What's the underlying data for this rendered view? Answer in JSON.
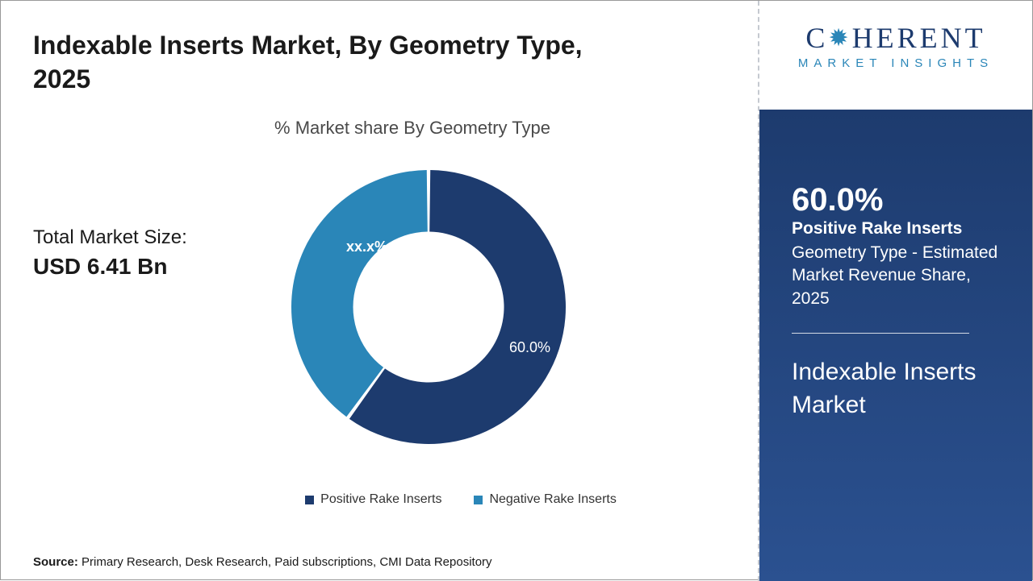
{
  "title": "Indexable Inserts Market, By Geometry Type, 2025",
  "chart": {
    "type": "donut",
    "title": "% Market share By Geometry Type",
    "series": [
      {
        "name": "Positive Rake Inserts",
        "value": 60.0,
        "display_label": "60.0%",
        "color": "#1d3b6e"
      },
      {
        "name": "Negative Rake Inserts",
        "value": 40.0,
        "display_label": "xx.x%",
        "color": "#2a86b8"
      }
    ],
    "inner_radius_ratio": 0.55,
    "outer_radius": 170,
    "gap_deg": 1.5,
    "background_color": "#ffffff",
    "label_fontsize": 18,
    "label_color": "#ffffff"
  },
  "market_size": {
    "label": "Total Market Size:",
    "value": "USD 6.41 Bn"
  },
  "legend": {
    "items": [
      {
        "label": "Positive Rake Inserts",
        "color": "#1d3b6e"
      },
      {
        "label": "Negative Rake Inserts",
        "color": "#2a86b8"
      }
    ],
    "fontsize": 16
  },
  "source": {
    "prefix": "Source:",
    "text": "Primary Research, Desk Research, Paid subscriptions, CMI Data Repository"
  },
  "logo": {
    "brand_pre": "C",
    "brand_post": "HERENT",
    "subtitle": "MARKET INSIGHTS",
    "brand_color": "#1d3b6e",
    "accent_color": "#2a86b8"
  },
  "side_panel": {
    "stat_pct": "60.0%",
    "stat_category": "Positive Rake Inserts",
    "stat_desc": "Geometry Type - Estimated Market Revenue Share, 2025",
    "market_name": "Indexable Inserts Market",
    "bg_gradient_top": "#1d3b6e",
    "bg_gradient_bottom": "#2b5190",
    "text_color": "#ffffff"
  }
}
